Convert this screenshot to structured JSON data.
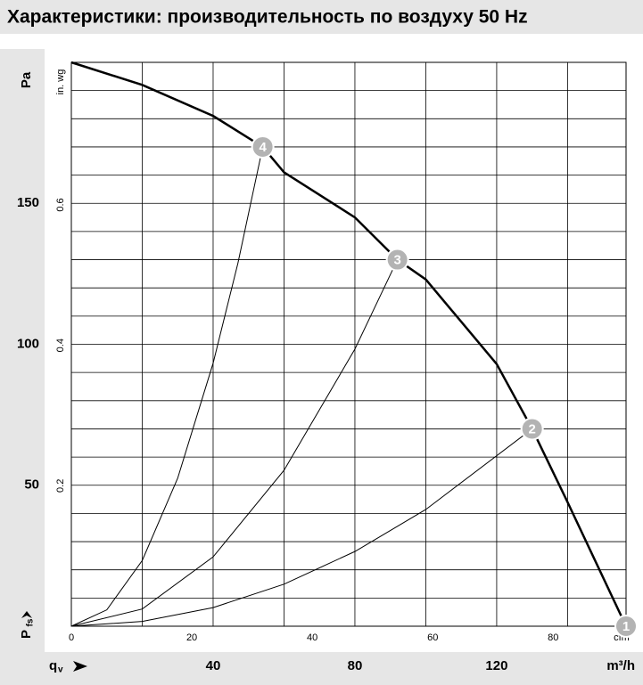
{
  "chart_data": {
    "type": "line",
    "title": "Характеристики: производительность по воздуху 50 Hz",
    "x_label": "m³/h",
    "x2_label": "cfm",
    "y_label": "Pa",
    "y2_label": "in. wg",
    "x_symbol": "q",
    "x_symbol_sub": "v",
    "y_symbol": "P",
    "y_symbol_sub": "fs",
    "xlim": [
      0,
      156.5
    ],
    "xticks": [
      40,
      80,
      120
    ],
    "x2lim": [
      0,
      92.1
    ],
    "x2ticks": [
      0,
      20,
      40,
      60,
      80
    ],
    "ylim": [
      0,
      200
    ],
    "yticks": [
      50,
      100,
      150
    ],
    "y2lim": [
      0,
      0.803
    ],
    "y2ticks": [
      0.2,
      0.4,
      0.6
    ],
    "xgrid": [
      20,
      40,
      60,
      80,
      100,
      120,
      140
    ],
    "ygrid": [
      10,
      20,
      30,
      40,
      50,
      60,
      70,
      80,
      90,
      100,
      110,
      120,
      130,
      140,
      150,
      160,
      170,
      180,
      190
    ],
    "grid": true,
    "series": [
      {
        "color": "#000000",
        "width": 2.5,
        "x": [
          0,
          20,
          40,
          54,
          60,
          80,
          92,
          100,
          120,
          130,
          140,
          156.5
        ],
        "values": [
          200,
          192,
          181,
          170,
          161,
          145,
          130,
          123,
          93,
          70,
          44,
          0
        ]
      },
      {
        "color": "#000000",
        "width": 1,
        "x": [
          0,
          10,
          20,
          30,
          40,
          47,
          54
        ],
        "values": [
          0,
          5.8,
          23.3,
          52.5,
          93.3,
          128.8,
          170
        ]
      },
      {
        "color": "#000000",
        "width": 1,
        "x": [
          0,
          20,
          40,
          60,
          80,
          92
        ],
        "values": [
          0,
          6.1,
          24.6,
          55.3,
          98.3,
          130
        ]
      },
      {
        "color": "#000000",
        "width": 1,
        "x": [
          0,
          20,
          40,
          60,
          80,
          100,
          130
        ],
        "values": [
          0,
          1.7,
          6.6,
          14.9,
          26.5,
          41.4,
          70
        ]
      }
    ],
    "points": [
      {
        "label": "1",
        "x": 156.5,
        "y": 0
      },
      {
        "label": "2",
        "x": 130,
        "y": 70
      },
      {
        "label": "3",
        "x": 92,
        "y": 130
      },
      {
        "label": "4",
        "x": 54,
        "y": 170
      }
    ],
    "point_color": "#b3b3b3"
  }
}
